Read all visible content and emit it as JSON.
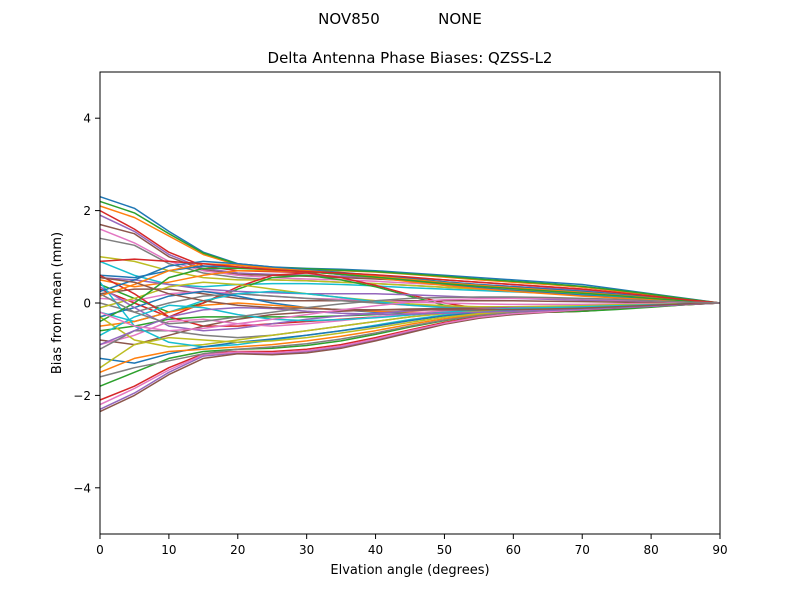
{
  "suptitle": {
    "left": "NOV850",
    "right": "NONE"
  },
  "chart_data": {
    "type": "line",
    "title": "Delta Antenna Phase Biases: QZSS-L2",
    "xlabel": "Elvation angle (degrees)",
    "ylabel": "Bias from mean (mm)",
    "xlim": [
      0,
      90
    ],
    "ylim": [
      -5,
      5
    ],
    "xticks": [
      0,
      10,
      20,
      30,
      40,
      50,
      60,
      70,
      80,
      90
    ],
    "yticks": [
      -4,
      -2,
      0,
      2,
      4
    ],
    "ytick_labels": [
      "−4",
      "−2",
      "0",
      "2",
      "4"
    ],
    "grid": false,
    "legend": "none",
    "x": [
      0,
      5,
      10,
      15,
      20,
      25,
      30,
      35,
      40,
      45,
      50,
      55,
      60,
      65,
      70,
      75,
      80,
      85,
      90
    ],
    "palette": [
      "#1f77b4",
      "#ff7f0e",
      "#2ca02c",
      "#d62728",
      "#9467bd",
      "#8c564b",
      "#e377c2",
      "#7f7f7f",
      "#bcbd22",
      "#17becf"
    ],
    "series": [
      {
        "values": [
          2.3,
          2.05,
          1.55,
          1.1,
          0.85,
          0.78,
          0.75,
          0.73,
          0.7,
          0.65,
          0.6,
          0.55,
          0.5,
          0.45,
          0.4,
          0.3,
          0.2,
          0.1,
          0
        ]
      },
      {
        "values": [
          2.1,
          1.85,
          1.45,
          1.05,
          0.82,
          0.75,
          0.72,
          0.7,
          0.67,
          0.62,
          0.56,
          0.5,
          0.45,
          0.4,
          0.34,
          0.26,
          0.17,
          0.08,
          0
        ]
      },
      {
        "values": [
          2.2,
          1.95,
          1.5,
          1.08,
          0.84,
          0.77,
          0.74,
          0.71,
          0.68,
          0.63,
          0.58,
          0.52,
          0.47,
          0.42,
          0.36,
          0.28,
          0.19,
          0.09,
          0
        ]
      },
      {
        "values": [
          2.0,
          1.6,
          1.1,
          0.8,
          0.7,
          0.68,
          0.66,
          0.64,
          0.6,
          0.55,
          0.5,
          0.45,
          0.4,
          0.35,
          0.3,
          0.22,
          0.15,
          0.07,
          0
        ]
      },
      {
        "values": [
          1.9,
          1.55,
          1.05,
          0.75,
          0.65,
          0.62,
          0.6,
          0.58,
          0.55,
          0.5,
          0.45,
          0.4,
          0.36,
          0.32,
          0.27,
          0.2,
          0.13,
          0.06,
          0
        ]
      },
      {
        "values": [
          1.7,
          1.5,
          1.0,
          0.72,
          0.62,
          0.6,
          0.58,
          0.55,
          0.52,
          0.48,
          0.43,
          0.38,
          0.34,
          0.3,
          0.25,
          0.19,
          0.12,
          0.06,
          0
        ]
      },
      {
        "values": [
          1.6,
          1.3,
          0.9,
          0.7,
          0.6,
          0.55,
          0.52,
          0.5,
          0.47,
          0.43,
          0.39,
          0.34,
          0.3,
          0.26,
          0.22,
          0.17,
          0.11,
          0.05,
          0
        ]
      },
      {
        "values": [
          1.4,
          1.25,
          0.85,
          0.65,
          0.55,
          0.5,
          0.48,
          0.45,
          0.42,
          0.38,
          0.34,
          0.3,
          0.26,
          0.23,
          0.19,
          0.15,
          0.1,
          0.05,
          0
        ]
      },
      {
        "values": [
          1.0,
          0.9,
          0.7,
          0.55,
          0.5,
          0.5,
          0.48,
          0.45,
          0.42,
          0.38,
          0.34,
          0.3,
          0.27,
          0.24,
          0.2,
          0.15,
          0.1,
          0.05,
          0
        ]
      },
      {
        "values": [
          0.9,
          0.6,
          0.4,
          0.35,
          0.4,
          0.42,
          0.42,
          0.4,
          0.37,
          0.33,
          0.3,
          0.27,
          0.24,
          0.21,
          0.18,
          0.14,
          0.09,
          0.04,
          0
        ]
      },
      {
        "values": [
          0.6,
          0.55,
          0.7,
          0.8,
          0.78,
          0.72,
          0.68,
          0.62,
          0.55,
          0.47,
          0.4,
          0.33,
          0.27,
          0.22,
          0.17,
          0.12,
          0.08,
          0.04,
          0
        ]
      },
      {
        "values": [
          0.5,
          0.35,
          0.45,
          0.6,
          0.7,
          0.7,
          0.68,
          0.62,
          0.55,
          0.46,
          0.38,
          0.31,
          0.25,
          0.2,
          0.15,
          0.11,
          0.07,
          0.03,
          0
        ]
      },
      {
        "values": [
          0.4,
          0.1,
          -0.2,
          0.0,
          0.3,
          0.55,
          0.6,
          0.5,
          0.35,
          0.15,
          -0.05,
          -0.15,
          -0.2,
          -0.2,
          -0.18,
          -0.13,
          -0.08,
          -0.04,
          0
        ]
      },
      {
        "values": [
          0.3,
          0.0,
          -0.3,
          0.0,
          0.35,
          0.6,
          0.65,
          0.55,
          0.38,
          0.18,
          0.0,
          -0.12,
          -0.18,
          -0.2,
          -0.18,
          -0.13,
          -0.08,
          -0.04,
          0
        ]
      },
      {
        "values": [
          0.55,
          0.5,
          0.4,
          0.3,
          0.25,
          0.22,
          0.2,
          0.2,
          0.2,
          0.18,
          0.15,
          0.12,
          0.1,
          0.08,
          0.06,
          0.05,
          0.03,
          0.01,
          0
        ]
      },
      {
        "values": [
          0.2,
          0.3,
          0.3,
          0.2,
          0.1,
          0.05,
          0.05,
          0.05,
          0.05,
          0.05,
          0.05,
          0.05,
          0.05,
          0.04,
          0.03,
          0.02,
          0.01,
          0.0,
          0
        ]
      },
      {
        "values": [
          0.1,
          0.05,
          0.2,
          0.25,
          0.2,
          0.15,
          0.1,
          0.08,
          0.05,
          0.02,
          0.0,
          -0.02,
          -0.03,
          -0.03,
          -0.03,
          -0.02,
          -0.01,
          0.0,
          0
        ]
      },
      {
        "values": [
          0.0,
          -0.2,
          0.0,
          0.15,
          0.2,
          0.15,
          0.1,
          0.05,
          0.0,
          -0.05,
          -0.08,
          -0.1,
          -0.1,
          -0.1,
          -0.08,
          -0.06,
          -0.04,
          -0.02,
          0
        ]
      },
      {
        "values": [
          -0.1,
          0.1,
          0.35,
          0.45,
          0.4,
          0.3,
          0.2,
          0.12,
          0.05,
          -0.02,
          -0.06,
          -0.08,
          -0.08,
          -0.07,
          -0.06,
          -0.04,
          -0.03,
          -0.01,
          0
        ]
      },
      {
        "values": [
          -0.2,
          -0.4,
          -0.2,
          0.05,
          0.2,
          0.25,
          0.2,
          0.12,
          0.03,
          -0.05,
          -0.1,
          -0.13,
          -0.14,
          -0.13,
          -0.11,
          -0.08,
          -0.05,
          -0.02,
          0
        ]
      },
      {
        "values": [
          -0.3,
          -0.1,
          0.15,
          0.25,
          0.15,
          0.0,
          -0.1,
          -0.15,
          -0.2,
          -0.2,
          -0.2,
          -0.18,
          -0.15,
          -0.12,
          -0.1,
          -0.07,
          -0.05,
          -0.02,
          0
        ]
      },
      {
        "values": [
          -0.5,
          -0.4,
          -0.2,
          -0.05,
          0.0,
          -0.05,
          -0.1,
          -0.15,
          -0.18,
          -0.2,
          -0.2,
          -0.18,
          -0.16,
          -0.14,
          -0.11,
          -0.08,
          -0.05,
          -0.02,
          0
        ]
      },
      {
        "values": [
          -0.6,
          -0.5,
          -0.35,
          -0.3,
          -0.3,
          -0.3,
          -0.3,
          -0.28,
          -0.25,
          -0.22,
          -0.2,
          -0.2,
          -0.2,
          -0.2,
          -0.18,
          -0.14,
          -0.09,
          -0.04,
          0
        ]
      },
      {
        "values": [
          0.6,
          0.2,
          -0.3,
          -0.5,
          -0.5,
          -0.45,
          -0.4,
          -0.35,
          -0.3,
          -0.25,
          -0.2,
          -0.18,
          -0.16,
          -0.15,
          -0.13,
          -0.1,
          -0.07,
          -0.03,
          0
        ]
      },
      {
        "values": [
          0.35,
          -0.1,
          -0.5,
          -0.6,
          -0.55,
          -0.45,
          -0.35,
          -0.28,
          -0.22,
          -0.17,
          -0.13,
          -0.11,
          -0.1,
          -0.1,
          -0.09,
          -0.07,
          -0.05,
          -0.02,
          0
        ]
      },
      {
        "values": [
          -0.8,
          -0.9,
          -0.7,
          -0.5,
          -0.35,
          -0.25,
          -0.2,
          -0.18,
          -0.15,
          -0.13,
          -0.12,
          -0.12,
          -0.12,
          -0.12,
          -0.11,
          -0.09,
          -0.06,
          -0.03,
          0
        ]
      },
      {
        "values": [
          -0.9,
          -0.7,
          -0.4,
          -0.35,
          -0.45,
          -0.5,
          -0.45,
          -0.38,
          -0.3,
          -0.22,
          -0.17,
          -0.14,
          -0.12,
          -0.11,
          -0.1,
          -0.08,
          -0.05,
          -0.02,
          0
        ]
      },
      {
        "values": [
          -1.0,
          -0.6,
          -0.6,
          -0.7,
          -0.75,
          -0.7,
          -0.6,
          -0.5,
          -0.4,
          -0.3,
          -0.22,
          -0.17,
          -0.14,
          -0.12,
          -0.1,
          -0.08,
          -0.05,
          -0.02,
          0
        ]
      },
      {
        "values": [
          -0.3,
          -0.8,
          -0.95,
          -0.9,
          -0.8,
          -0.7,
          -0.6,
          -0.5,
          -0.4,
          -0.3,
          -0.23,
          -0.18,
          -0.14,
          -0.12,
          -0.1,
          -0.08,
          -0.05,
          -0.02,
          0
        ]
      },
      {
        "values": [
          0.45,
          -0.5,
          -0.85,
          -0.95,
          -0.9,
          -0.8,
          -0.7,
          -0.6,
          -0.48,
          -0.36,
          -0.26,
          -0.2,
          -0.16,
          -0.13,
          -0.11,
          -0.08,
          -0.05,
          -0.02,
          0
        ]
      },
      {
        "values": [
          -1.2,
          -1.3,
          -1.1,
          -0.95,
          -0.85,
          -0.78,
          -0.7,
          -0.6,
          -0.5,
          -0.38,
          -0.28,
          -0.21,
          -0.17,
          -0.14,
          -0.11,
          -0.08,
          -0.05,
          -0.02,
          0
        ]
      },
      {
        "values": [
          -1.5,
          -1.2,
          -1.05,
          -1.0,
          -0.95,
          -0.9,
          -0.82,
          -0.72,
          -0.6,
          -0.46,
          -0.34,
          -0.25,
          -0.19,
          -0.15,
          -0.12,
          -0.09,
          -0.06,
          -0.03,
          0
        ]
      },
      {
        "values": [
          -1.8,
          -1.5,
          -1.2,
          -1.05,
          -1.0,
          -0.98,
          -0.92,
          -0.82,
          -0.68,
          -0.52,
          -0.38,
          -0.28,
          -0.21,
          -0.17,
          -0.13,
          -0.1,
          -0.06,
          -0.03,
          0
        ]
      },
      {
        "values": [
          -2.1,
          -1.8,
          -1.4,
          -1.1,
          -1.05,
          -1.05,
          -1.0,
          -0.9,
          -0.75,
          -0.58,
          -0.42,
          -0.3,
          -0.22,
          -0.18,
          -0.14,
          -0.1,
          -0.07,
          -0.03,
          0
        ]
      },
      {
        "values": [
          -2.3,
          -1.95,
          -1.5,
          -1.15,
          -1.08,
          -1.1,
          -1.05,
          -0.95,
          -0.8,
          -0.62,
          -0.45,
          -0.32,
          -0.24,
          -0.19,
          -0.15,
          -0.11,
          -0.07,
          -0.03,
          0
        ]
      },
      {
        "values": [
          -2.35,
          -2.0,
          -1.55,
          -1.2,
          -1.1,
          -1.12,
          -1.08,
          -0.98,
          -0.82,
          -0.64,
          -0.46,
          -0.33,
          -0.25,
          -0.2,
          -0.15,
          -0.11,
          -0.07,
          -0.03,
          0
        ]
      },
      {
        "values": [
          -2.2,
          -1.85,
          -1.45,
          -1.12,
          -1.06,
          -1.08,
          -1.03,
          -0.93,
          -0.78,
          -0.6,
          -0.44,
          -0.31,
          -0.23,
          -0.19,
          -0.14,
          -0.1,
          -0.07,
          -0.03,
          0
        ]
      },
      {
        "values": [
          -1.6,
          -1.4,
          -1.25,
          -1.1,
          -1.0,
          -0.95,
          -0.88,
          -0.78,
          -0.65,
          -0.5,
          -0.37,
          -0.27,
          -0.2,
          -0.16,
          -0.12,
          -0.09,
          -0.06,
          -0.03,
          0
        ]
      },
      {
        "values": [
          -1.4,
          -0.9,
          -0.75,
          -0.8,
          -0.85,
          -0.82,
          -0.75,
          -0.65,
          -0.54,
          -0.42,
          -0.31,
          -0.23,
          -0.18,
          -0.14,
          -0.11,
          -0.08,
          -0.05,
          -0.02,
          0
        ]
      },
      {
        "values": [
          -0.7,
          -0.3,
          -0.05,
          -0.1,
          -0.25,
          -0.35,
          -0.38,
          -0.36,
          -0.32,
          -0.26,
          -0.2,
          -0.15,
          -0.12,
          -0.1,
          -0.08,
          -0.06,
          -0.04,
          -0.02,
          0
        ]
      },
      {
        "values": [
          0.25,
          0.5,
          0.8,
          0.9,
          0.85,
          0.78,
          0.72,
          0.66,
          0.6,
          0.53,
          0.46,
          0.4,
          0.35,
          0.3,
          0.25,
          0.19,
          0.13,
          0.06,
          0
        ]
      },
      {
        "values": [
          0.15,
          0.4,
          0.7,
          0.85,
          0.82,
          0.75,
          0.7,
          0.64,
          0.58,
          0.51,
          0.44,
          0.38,
          0.33,
          0.28,
          0.23,
          0.17,
          0.11,
          0.05,
          0
        ]
      },
      {
        "values": [
          -0.4,
          0.0,
          0.55,
          0.75,
          0.75,
          0.72,
          0.68,
          0.62,
          0.56,
          0.49,
          0.42,
          0.36,
          0.31,
          0.26,
          0.21,
          0.16,
          0.1,
          0.05,
          0
        ]
      },
      {
        "values": [
          0.9,
          0.95,
          0.9,
          0.85,
          0.78,
          0.72,
          0.68,
          0.65,
          0.61,
          0.56,
          0.5,
          0.45,
          0.4,
          0.35,
          0.3,
          0.23,
          0.15,
          0.07,
          0
        ]
      },
      {
        "values": [
          -0.9,
          -0.6,
          -0.3,
          -0.15,
          -0.1,
          -0.12,
          -0.18,
          -0.22,
          -0.24,
          -0.24,
          -0.22,
          -0.2,
          -0.18,
          -0.16,
          -0.13,
          -0.1,
          -0.07,
          -0.03,
          0
        ]
      },
      {
        "values": [
          0.55,
          0.45,
          0.2,
          0.05,
          -0.05,
          -0.1,
          -0.12,
          -0.14,
          -0.15,
          -0.15,
          -0.15,
          -0.15,
          -0.14,
          -0.13,
          -0.11,
          -0.08,
          -0.05,
          -0.02,
          0
        ]
      },
      {
        "values": [
          -0.2,
          -0.5,
          -0.6,
          -0.55,
          -0.45,
          -0.35,
          -0.25,
          -0.15,
          -0.06,
          0.02,
          0.07,
          0.09,
          0.1,
          0.1,
          0.09,
          0.07,
          0.05,
          0.02,
          0
        ]
      },
      {
        "values": [
          0.2,
          -0.2,
          -0.45,
          -0.4,
          -0.3,
          -0.2,
          -0.1,
          -0.02,
          0.05,
          0.1,
          0.12,
          0.13,
          0.13,
          0.12,
          0.1,
          0.08,
          0.05,
          0.02,
          0
        ]
      }
    ]
  }
}
